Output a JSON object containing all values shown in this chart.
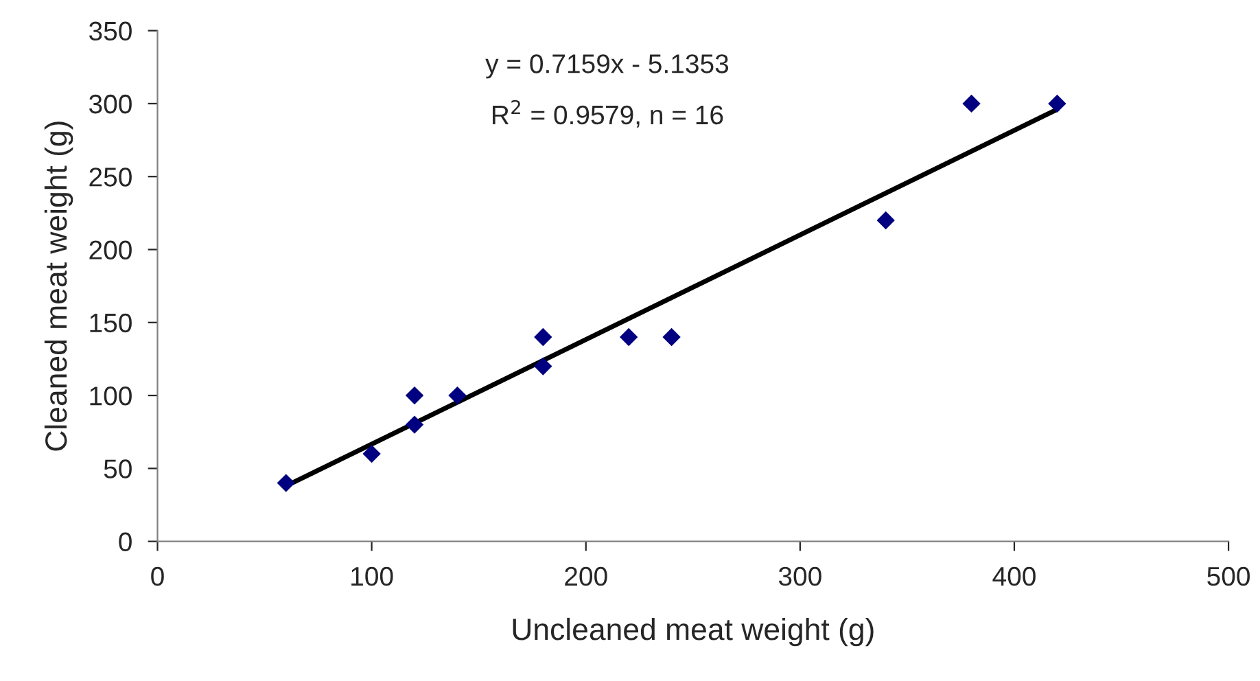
{
  "chart_data": {
    "type": "scatter",
    "xlabel": "Uncleaned meat weight (g)",
    "ylabel": "Cleaned meat weight (g)",
    "annotations": [
      "y = 0.7159x - 5.1353",
      "R$^{2}$ = 0.9579, n = 16"
    ],
    "xlim": [
      0,
      500
    ],
    "xticks": [
      0,
      100,
      200,
      300,
      400,
      500
    ],
    "ylim": [
      0,
      350
    ],
    "yticks": [
      0,
      50,
      100,
      150,
      200,
      250,
      300,
      350
    ],
    "grid": false,
    "legend": false,
    "series": [
      {
        "color": "#000080",
        "marker": "diamond",
        "x": [
          60,
          100,
          120,
          120,
          140,
          180,
          180,
          220,
          240,
          340,
          380,
          420
        ],
        "values": [
          40,
          60,
          80,
          100,
          100,
          120,
          140,
          140,
          140,
          220,
          300,
          300
        ]
      },
      {
        "type": "line",
        "color": "#000000",
        "x": [
          60,
          420
        ],
        "values": [
          38,
          296
        ],
        "line_style": "solid"
      }
    ]
  }
}
